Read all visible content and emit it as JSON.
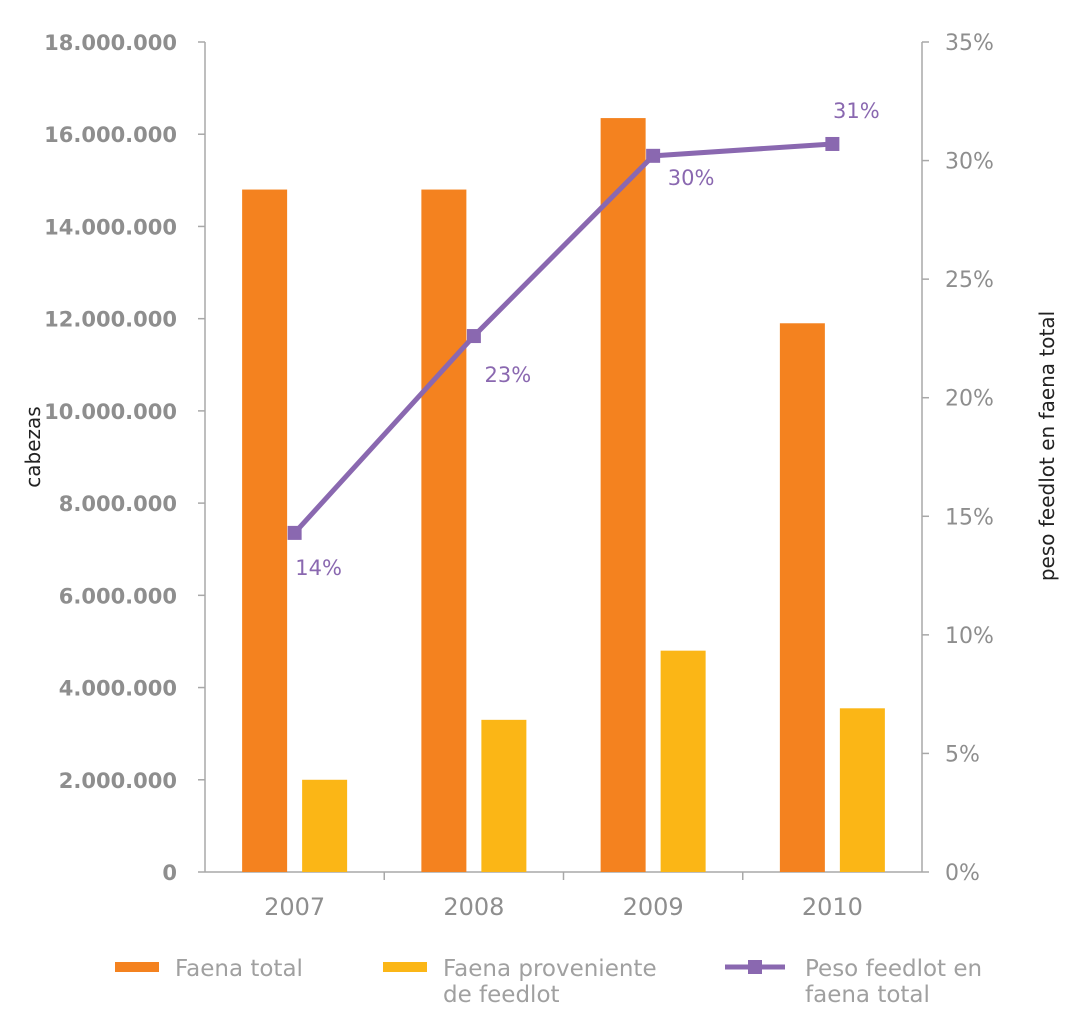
{
  "chart_data": {
    "type": "bar",
    "categories": [
      "2007",
      "2008",
      "2009",
      "2010"
    ],
    "series": [
      {
        "name": "Faena total",
        "type": "bar",
        "axis": "left",
        "color": "#f4821f",
        "values": [
          14800000,
          14800000,
          16350000,
          11900000
        ]
      },
      {
        "name": "Faena proveniente de feedlot",
        "type": "bar",
        "axis": "left",
        "color": "#fbb616",
        "values": [
          2000000,
          3300000,
          4800000,
          3550000
        ]
      },
      {
        "name": "Peso feedlot en faena total",
        "type": "line",
        "axis": "right",
        "color": "#8a68b0",
        "values": [
          14.3,
          22.6,
          30.2,
          30.7
        ],
        "labels": [
          "14%",
          "23%",
          "30%",
          "31%"
        ]
      }
    ],
    "ylabel": "cabezas",
    "y2label": "peso feedlot en faena total",
    "ylim": [
      0,
      18000000
    ],
    "y2lim": [
      0,
      35
    ],
    "yticks": [
      "0",
      "2.000.000",
      "4.000.000",
      "6.000.000",
      "8.000.000",
      "10.000.000",
      "12.000.000",
      "14.000.000",
      "16.000.000",
      "18.000.000"
    ],
    "y2ticks": [
      "0%",
      "5%",
      "10%",
      "15%",
      "20%",
      "25%",
      "30%",
      "35%"
    ],
    "grid": false,
    "legend": {
      "placement": "bottom",
      "entries": [
        {
          "lines": [
            "Faena total"
          ],
          "kind": "bar",
          "color": "#f4821f"
        },
        {
          "lines": [
            "Faena proveniente",
            "de feedlot"
          ],
          "kind": "bar",
          "color": "#fbb616"
        },
        {
          "lines": [
            "Peso feedlot en",
            "faena total"
          ],
          "kind": "line",
          "color": "#8a68b0"
        }
      ]
    }
  }
}
